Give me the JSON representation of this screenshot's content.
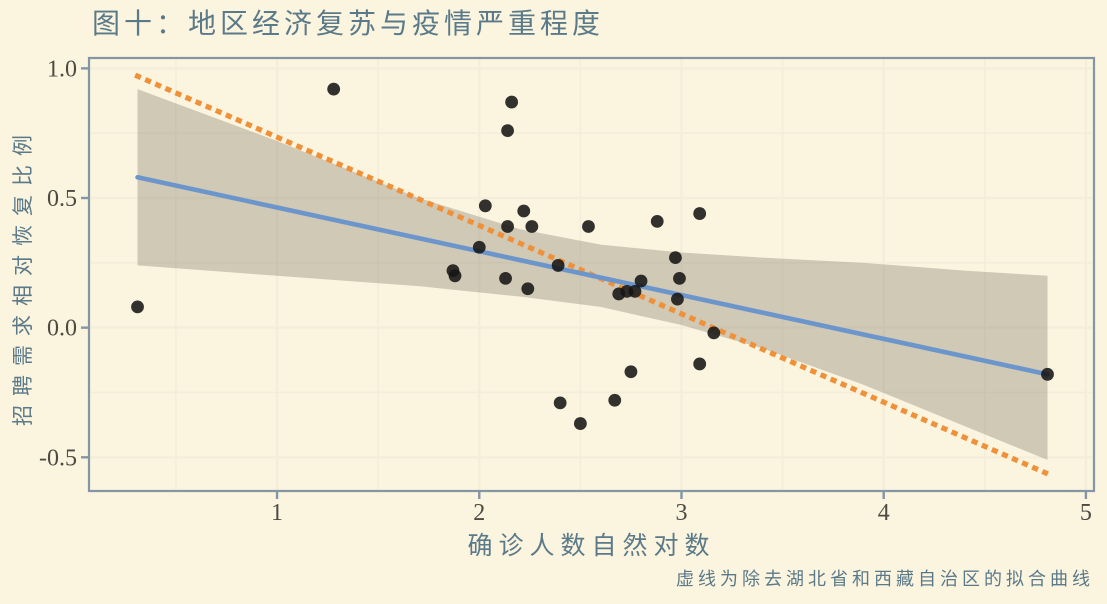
{
  "colors": {
    "background": "#FBF4DF",
    "gridline": "#F3EDDA",
    "panel_border": "#8495A3",
    "tick_mark": "#8495A3",
    "axis_text": "#4C4A42",
    "label_text": "#5B7A89",
    "point": "#161616",
    "solid_line": "#6C96CB",
    "dashed_line": "#F0913A",
    "confidence_band": "rgba(127,118,99,0.34)"
  },
  "chart_data": {
    "type": "scatter",
    "title": "图十：地区经济复苏与疫情严重程度",
    "xlabel": "确诊人数自然对数",
    "ylabel": "招聘需求相对恢复比例",
    "caption": "虚线为除去湖北省和西藏自治区的拟合曲线",
    "grid": "on",
    "legend": "none",
    "x_axis": {
      "range": [
        0.07,
        5.04
      ],
      "ticks": [
        1,
        2,
        3,
        4,
        5
      ],
      "labels": [
        "1",
        "2",
        "3",
        "4",
        "5"
      ],
      "minor": [
        0.5,
        1.5,
        2.5,
        3.5,
        4.5
      ]
    },
    "y_axis": {
      "range": [
        -0.63,
        1.04
      ],
      "ticks": [
        1.0,
        0.5,
        0.0,
        -0.5
      ],
      "labels": [
        "1.0",
        "0.5",
        "0.0",
        "-0.5"
      ],
      "minor": [
        0.75,
        0.25,
        -0.25
      ]
    },
    "points": [
      [
        0.31,
        0.08
      ],
      [
        1.28,
        0.92
      ],
      [
        1.87,
        0.22
      ],
      [
        1.88,
        0.2
      ],
      [
        2.0,
        0.31
      ],
      [
        2.03,
        0.47
      ],
      [
        2.13,
        0.19
      ],
      [
        2.14,
        0.76
      ],
      [
        2.14,
        0.39
      ],
      [
        2.16,
        0.87
      ],
      [
        2.22,
        0.45
      ],
      [
        2.24,
        0.15
      ],
      [
        2.26,
        0.39
      ],
      [
        2.39,
        0.24
      ],
      [
        2.4,
        -0.29
      ],
      [
        2.5,
        -0.37
      ],
      [
        2.54,
        0.39
      ],
      [
        2.67,
        -0.28
      ],
      [
        2.69,
        0.13
      ],
      [
        2.73,
        0.14
      ],
      [
        2.77,
        0.14
      ],
      [
        2.75,
        -0.17
      ],
      [
        2.8,
        0.18
      ],
      [
        2.88,
        0.41
      ],
      [
        2.97,
        0.27
      ],
      [
        2.98,
        0.11
      ],
      [
        2.99,
        0.19
      ],
      [
        3.09,
        0.44
      ],
      [
        3.09,
        -0.14
      ],
      [
        3.16,
        -0.02
      ],
      [
        4.81,
        -0.18
      ]
    ],
    "solid_fit_line": {
      "x": [
        0.31,
        4.81
      ],
      "y": [
        0.58,
        -0.18
      ]
    },
    "dashed_fit_line": {
      "x": [
        0.31,
        4.8
      ],
      "y": [
        0.97,
        -0.56
      ]
    },
    "ci_band": {
      "x": [
        0.31,
        1.0,
        1.7,
        2.2,
        2.6,
        3.0,
        3.4,
        3.9,
        4.4,
        4.81
      ],
      "upper": [
        0.92,
        0.72,
        0.5,
        0.38,
        0.32,
        0.29,
        0.27,
        0.25,
        0.22,
        0.2
      ],
      "lower": [
        0.24,
        0.2,
        0.16,
        0.12,
        0.08,
        0.01,
        -0.08,
        -0.22,
        -0.38,
        -0.51
      ]
    }
  }
}
